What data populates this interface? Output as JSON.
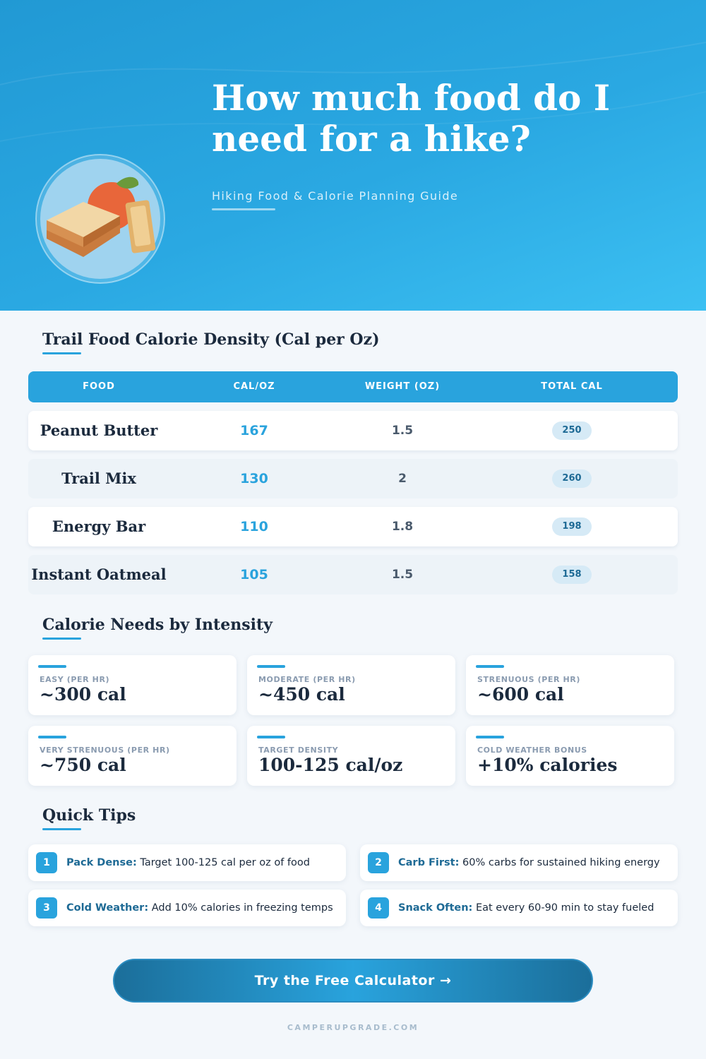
{
  "header": {
    "title": "How much food do I need for a hike?",
    "subtitle": "Hiking Food & Calorie Planning Guide"
  },
  "table": {
    "title": "Trail Food Calorie Density (Cal per Oz)",
    "headers": [
      "FOOD",
      "CAL/OZ",
      "WEIGHT (OZ)",
      "TOTAL CAL"
    ],
    "rows": [
      [
        "Peanut Butter",
        167,
        1.5,
        250
      ],
      [
        "Trail Mix",
        130,
        2,
        260
      ],
      [
        "Energy Bar",
        110,
        1.8,
        198
      ],
      [
        "Instant Oatmeal",
        105,
        1.5,
        158
      ]
    ]
  },
  "intensity": {
    "title": "Calorie Needs by Intensity",
    "cards": [
      {
        "label": "EASY (PER HR)",
        "value": "~300 cal"
      },
      {
        "label": "MODERATE (PER HR)",
        "value": "~450 cal"
      },
      {
        "label": "STRENUOUS (PER HR)",
        "value": "~600 cal"
      },
      {
        "label": "VERY STRENUOUS (PER HR)",
        "value": "~750 cal"
      },
      {
        "label": "TARGET DENSITY",
        "value": "100-125 cal/oz"
      },
      {
        "label": "COLD WEATHER BONUS",
        "value": "+10% calories"
      }
    ]
  },
  "tips": {
    "title": "Quick Tips",
    "items": [
      {
        "number": "1",
        "heading": "Pack Dense:",
        "text": "Target 100-125 cal per oz of food"
      },
      {
        "number": "2",
        "heading": "Carb First:",
        "text": "60% carbs for sustained hiking energy"
      },
      {
        "number": "3",
        "heading": "Cold Weather:",
        "text": "Add 10% calories in freezing temps"
      },
      {
        "number": "4",
        "heading": "Snack Often:",
        "text": "Eat every 60-90 min to stay fueled"
      }
    ]
  },
  "cta": {
    "label": "Try the Free Calculator →"
  },
  "footer": {
    "text": "CAMPERUPGRADE.COM"
  }
}
